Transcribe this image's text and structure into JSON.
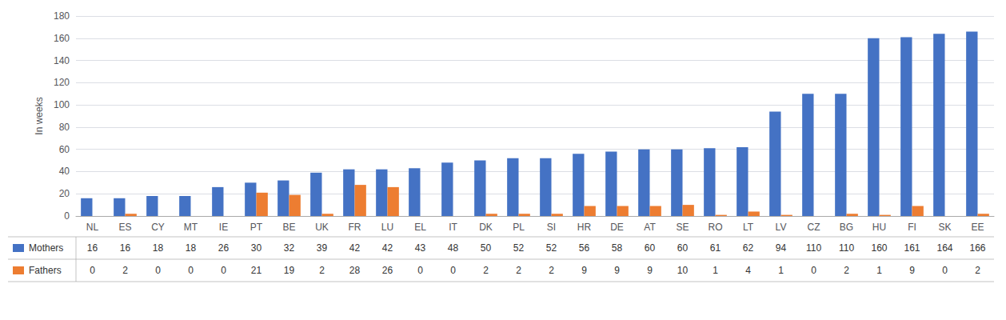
{
  "chart_data": {
    "type": "bar",
    "categories": [
      "NL",
      "ES",
      "CY",
      "MT",
      "IE",
      "PT",
      "BE",
      "UK",
      "FR",
      "LU",
      "EL",
      "IT",
      "DK",
      "PL",
      "SI",
      "HR",
      "DE",
      "AT",
      "SE",
      "RO",
      "LT",
      "LV",
      "CZ",
      "BG",
      "HU",
      "FI",
      "SK",
      "EE"
    ],
    "series": [
      {
        "name": "Mothers",
        "color": "#4472C4",
        "values": [
          16,
          16,
          18,
          18,
          26,
          30,
          32,
          39,
          42,
          42,
          43,
          48,
          50,
          52,
          52,
          56,
          58,
          60,
          60,
          61,
          62,
          94,
          110,
          110,
          160,
          161,
          164,
          166
        ]
      },
      {
        "name": "Fathers",
        "color": "#ED7D31",
        "values": [
          0,
          2,
          0,
          0,
          0,
          21,
          19,
          2,
          28,
          26,
          0,
          0,
          2,
          2,
          2,
          9,
          9,
          9,
          10,
          1,
          4,
          1,
          0,
          2,
          1,
          9,
          0,
          2
        ]
      }
    ],
    "ylabel": "In weeks",
    "ylim": [
      0,
      180
    ],
    "yticks": [
      0,
      20,
      40,
      60,
      80,
      100,
      120,
      140,
      160,
      180
    ],
    "grid": true
  }
}
